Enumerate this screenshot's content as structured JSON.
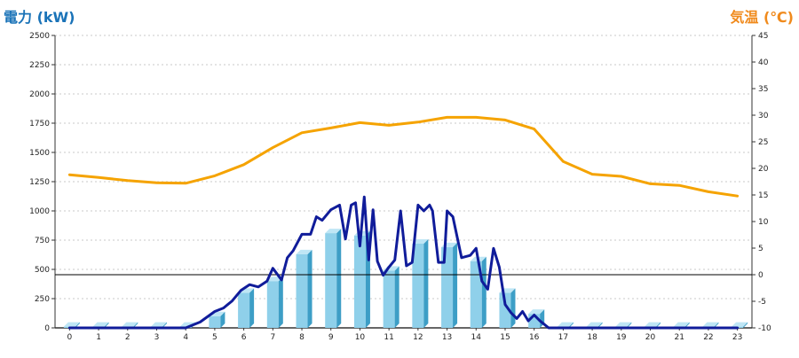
{
  "chart_data": {
    "type": "bar",
    "left_axis_label": "電力 (kW)",
    "right_axis_label": "気温 (℃)",
    "categories": [
      "0",
      "1",
      "2",
      "3",
      "4",
      "5",
      "6",
      "7",
      "8",
      "9",
      "10",
      "11",
      "12",
      "13",
      "14",
      "15",
      "16",
      "17",
      "18",
      "19",
      "20",
      "21",
      "22",
      "23"
    ],
    "left_ticks": [
      "0",
      "250",
      "500",
      "750",
      "1000",
      "1250",
      "1500",
      "1750",
      "2000",
      "2250",
      "2500"
    ],
    "right_ticks": [
      "-10",
      "-5",
      "0",
      "5",
      "10",
      "15",
      "20",
      "25",
      "30",
      "35",
      "40",
      "45"
    ],
    "ylim_left": [
      0,
      2500
    ],
    "ylim_right": [
      -10,
      45
    ],
    "grid": true,
    "colors": {
      "bars": "#8fd0ea",
      "bars_side": "#3d9ec6",
      "line_power": "#101c9a",
      "line_temp": "#f5a300",
      "zero_line": "#000000"
    },
    "series": [
      {
        "kind": "bar",
        "axis": "left",
        "values": [
          10,
          10,
          10,
          10,
          10,
          100,
          300,
          400,
          630,
          810,
          790,
          490,
          720,
          690,
          570,
          300,
          120,
          10,
          10,
          10,
          10,
          10,
          10,
          10
        ]
      },
      {
        "kind": "line",
        "axis": "left",
        "x": [
          0,
          1,
          2,
          3,
          4,
          4.5,
          5,
          5.3,
          5.6,
          5.9,
          6.2,
          6.5,
          6.8,
          7,
          7.3,
          7.5,
          7.7,
          8,
          8.3,
          8.5,
          8.7,
          9,
          9.3,
          9.5,
          9.7,
          9.85,
          10,
          10.15,
          10.3,
          10.45,
          10.6,
          10.8,
          11,
          11.2,
          11.4,
          11.6,
          11.8,
          12,
          12.2,
          12.4,
          12.5,
          12.7,
          12.9,
          13,
          13.2,
          13.5,
          13.8,
          14,
          14.2,
          14.4,
          14.6,
          14.8,
          15,
          15.2,
          15.4,
          15.6,
          15.8,
          16,
          16.2,
          16.5,
          16.8,
          17,
          18,
          19,
          20,
          21,
          22,
          23
        ],
        "values": [
          0,
          0,
          0,
          0,
          0,
          50,
          140,
          170,
          230,
          320,
          370,
          350,
          400,
          510,
          410,
          600,
          660,
          800,
          800,
          950,
          920,
          1010,
          1050,
          760,
          1050,
          1070,
          700,
          1120,
          580,
          1010,
          570,
          450,
          520,
          580,
          1000,
          530,
          560,
          1050,
          1000,
          1050,
          1000,
          560,
          560,
          1000,
          950,
          600,
          620,
          680,
          400,
          330,
          680,
          520,
          200,
          130,
          80,
          140,
          60,
          110,
          60,
          0,
          0,
          0,
          0,
          0,
          0,
          0,
          0,
          0
        ]
      },
      {
        "kind": "line",
        "axis": "right",
        "x": [
          0,
          1,
          2,
          3,
          4,
          5,
          6,
          7,
          8,
          9,
          10,
          11,
          12,
          13,
          14,
          15,
          16,
          17,
          18,
          19,
          20,
          21,
          22,
          23
        ],
        "values": [
          18.8,
          18.3,
          17.7,
          17.3,
          17.2,
          18.6,
          20.7,
          23.9,
          26.7,
          27.6,
          28.6,
          28.1,
          28.7,
          29.6,
          29.6,
          29.1,
          27.4,
          21.3,
          18.9,
          18.5,
          17.1,
          16.8,
          15.6,
          14.8
        ]
      }
    ]
  }
}
